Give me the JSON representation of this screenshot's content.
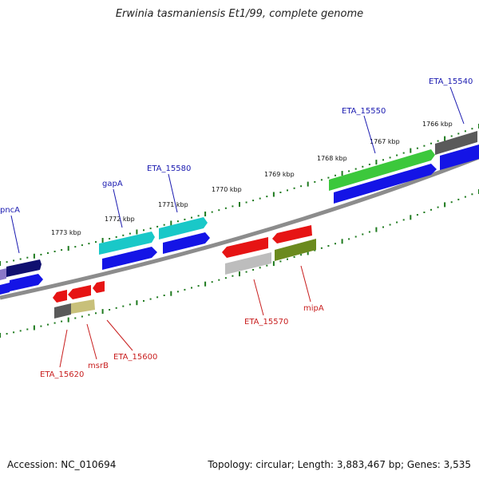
{
  "title": "Erwinia tasmaniensis Et1/99, complete genome",
  "footer": {
    "accession": "Accession: NC_010694",
    "topology": "Topology: circular; Length: 3,883,467 bp; Genes: 3,535"
  },
  "colors": {
    "backbone": "#8c8c8c",
    "ticks": "#1e7a1e",
    "forward_label": "#1a1ab0",
    "reverse_label": "#c81e1e"
  },
  "kbp_labels": [
    "1766 kbp",
    "1767 kbp",
    "1768 kbp",
    "1769 kbp",
    "1770 kbp",
    "1771 kbp",
    "1772 kbp",
    "1773 kbp"
  ],
  "gene_labels": {
    "forward": [
      "ETA_15540",
      "ETA_15550",
      "ETA_15580",
      "gapA",
      "pncA"
    ],
    "reverse": [
      "ETA_15570",
      "mipA",
      "ETA_15600",
      "msrB",
      "ETA_15620"
    ]
  },
  "features": {
    "forward_upper": [
      "dark-gray",
      "green",
      "cyan",
      "cyan",
      "navy",
      "light-blue"
    ],
    "forward_lower": [
      "blue",
      "blue",
      "blue",
      "blue",
      "blue"
    ],
    "reverse_upper": [
      "red",
      "red",
      "red",
      "red",
      "red"
    ],
    "reverse_lower": [
      "light-gray",
      "olive",
      "khaki",
      "dark-gray"
    ]
  }
}
